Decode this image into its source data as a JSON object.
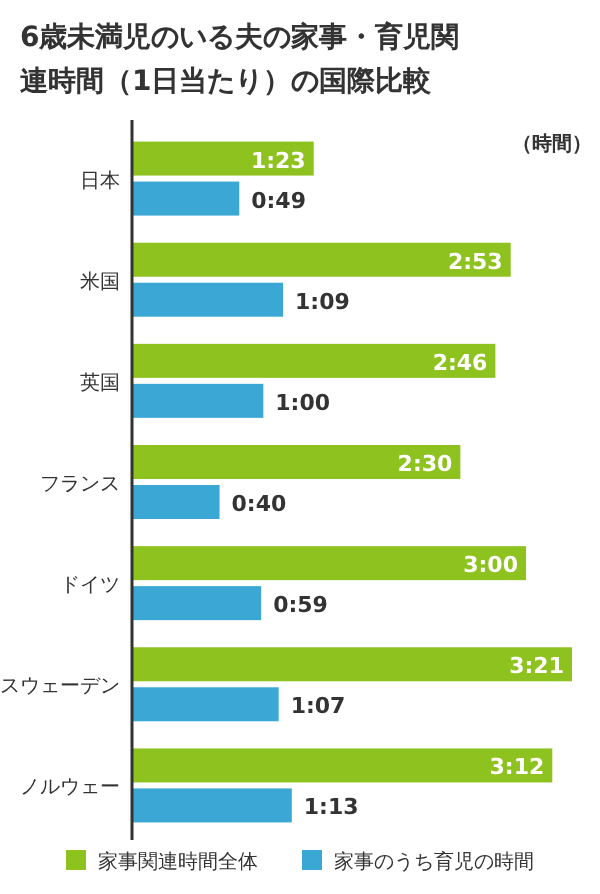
{
  "chart_data": {
    "type": "bar",
    "orientation": "horizontal",
    "title": "6歳未満児のいる夫の家事・育児関連時間（1日当たり）の国際比較",
    "annotations": [
      "（時間）"
    ],
    "categories": [
      "日本",
      "米国",
      "英国",
      "フランス",
      "ドイツ",
      "スウェーデン",
      "ノルウェー"
    ],
    "series": [
      {
        "name": "家事関連時間全体",
        "color": "#8dc21f",
        "values": [
          83,
          173,
          166,
          150,
          180,
          201,
          192
        ],
        "value_labels": [
          "1:23",
          "2:53",
          "2:46",
          "2:30",
          "3:00",
          "3:21",
          "3:12"
        ]
      },
      {
        "name": "家事のうち育児の時間",
        "color": "#3ba7d4",
        "values": [
          49,
          69,
          60,
          40,
          59,
          67,
          73
        ],
        "value_labels": [
          "0:49",
          "1:09",
          "1:00",
          "0:40",
          "0:59",
          "1:07",
          "1:13"
        ]
      }
    ],
    "legend": "bottom"
  }
}
